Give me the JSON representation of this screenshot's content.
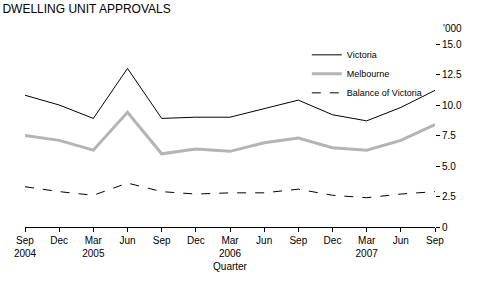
{
  "chart_data": {
    "type": "line",
    "title": "DWELLING UNIT APPROVALS",
    "xlabel": "Quarter",
    "ylabel": "'000",
    "categories": [
      "Sep 2004",
      "Dec",
      "Mar 2005",
      "Jun",
      "Sep",
      "Dec",
      "Mar 2006",
      "Jun",
      "Sep",
      "Dec",
      "Mar 2007",
      "Jun",
      "Sep"
    ],
    "series": [
      {
        "name": "Victoria",
        "color": "#000000",
        "line_style": "solid",
        "values": [
          10.8,
          10.0,
          8.9,
          13.0,
          8.9,
          9.0,
          9.0,
          9.7,
          10.4,
          9.2,
          8.7,
          9.8,
          11.2
        ]
      },
      {
        "name": "Melbourne",
        "color": "#b4b4b4",
        "line_style": "solid",
        "values": [
          7.5,
          7.1,
          6.3,
          9.4,
          6.0,
          6.4,
          6.2,
          6.9,
          7.3,
          6.5,
          6.3,
          7.1,
          8.4
        ]
      },
      {
        "name": "Balance of Victoria",
        "color": "#000000",
        "line_style": "dash",
        "values": [
          3.3,
          2.9,
          2.6,
          3.6,
          2.9,
          2.7,
          2.8,
          2.8,
          3.1,
          2.6,
          2.4,
          2.7,
          2.9
        ]
      }
    ],
    "ylim": [
      0,
      15
    ],
    "yticks": [
      0,
      2.5,
      {
        "value": 5,
        "label": "5.0"
      },
      7.5,
      {
        "value": 10,
        "label": "10.0"
      },
      12.5,
      {
        "value": 15,
        "label": "15.0"
      }
    ],
    "grid": false,
    "legend": "top-right"
  }
}
